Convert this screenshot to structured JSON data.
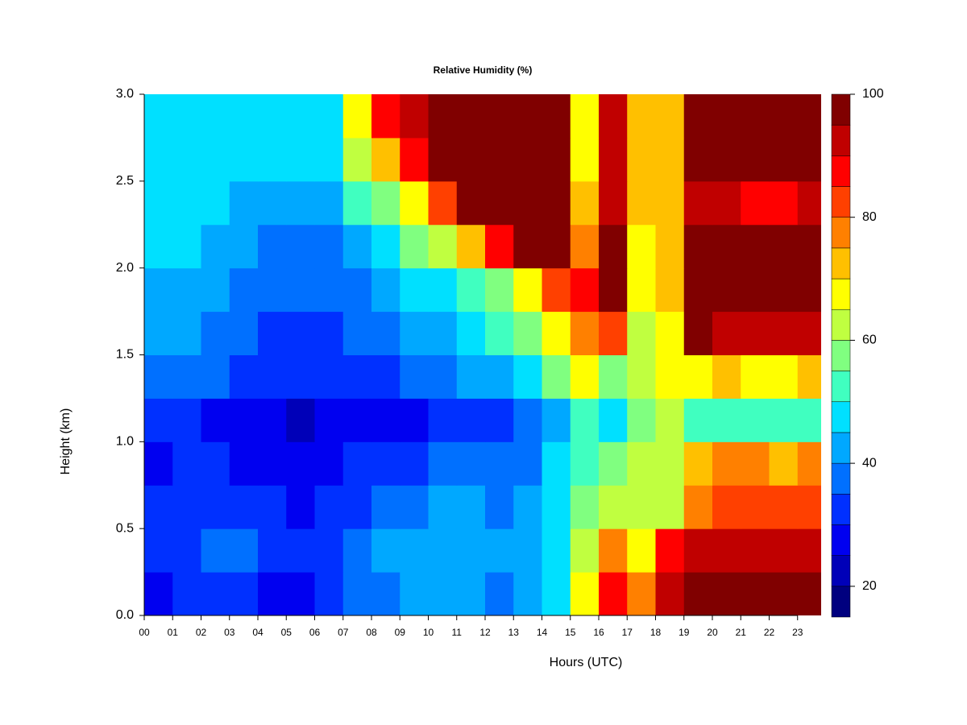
{
  "chart_data": {
    "type": "heatmap",
    "title": "Relative Humidity (%)",
    "x_label": "Hours (UTC)",
    "y_label": "Height (km)",
    "x": [
      0.5,
      1.5,
      2.5,
      3.5,
      4.5,
      5.5,
      6.5,
      7.5,
      8.5,
      9.5,
      10.5,
      11.5,
      12.5,
      13.5,
      14.5,
      15.5,
      16.5,
      17.5,
      18.5,
      19.5,
      20.5,
      21.5,
      22.5,
      23.5
    ],
    "y": [
      0.125,
      0.375,
      0.625,
      0.875,
      1.125,
      1.375,
      1.625,
      1.875,
      2.125,
      2.375,
      2.625,
      2.875
    ],
    "z": [
      [
        28,
        30,
        32,
        30,
        28,
        28,
        30,
        35,
        38,
        40,
        40,
        40,
        38,
        40,
        45,
        65,
        88,
        75,
        90,
        97,
        97,
        97,
        97,
        97
      ],
      [
        30,
        33,
        35,
        35,
        33,
        30,
        32,
        38,
        40,
        42,
        43,
        42,
        40,
        42,
        48,
        60,
        78,
        68,
        85,
        92,
        90,
        92,
        92,
        92
      ],
      [
        30,
        32,
        32,
        32,
        30,
        28,
        30,
        33,
        35,
        38,
        40,
        40,
        38,
        40,
        48,
        55,
        62,
        62,
        62,
        78,
        80,
        82,
        80,
        80
      ],
      [
        28,
        30,
        30,
        28,
        25,
        25,
        27,
        30,
        30,
        32,
        35,
        35,
        36,
        38,
        45,
        52,
        55,
        60,
        62,
        72,
        75,
        75,
        72,
        75
      ],
      [
        30,
        30,
        28,
        27,
        25,
        23,
        25,
        27,
        27,
        28,
        30,
        32,
        34,
        36,
        42,
        50,
        48,
        58,
        60,
        50,
        52,
        50,
        52,
        52
      ],
      [
        38,
        38,
        36,
        33,
        30,
        30,
        32,
        33,
        33,
        35,
        38,
        40,
        42,
        48,
        55,
        65,
        55,
        62,
        65,
        68,
        70,
        68,
        68,
        70
      ],
      [
        42,
        40,
        38,
        35,
        33,
        32,
        33,
        36,
        38,
        40,
        42,
        45,
        50,
        58,
        68,
        78,
        82,
        62,
        68,
        97,
        92,
        92,
        92,
        92
      ],
      [
        42,
        42,
        40,
        38,
        35,
        35,
        35,
        38,
        42,
        45,
        48,
        52,
        58,
        68,
        80,
        85,
        97,
        65,
        70,
        98,
        98,
        98,
        98,
        98
      ],
      [
        45,
        45,
        42,
        40,
        38,
        38,
        38,
        42,
        48,
        55,
        62,
        70,
        85,
        97,
        97,
        75,
        97,
        68,
        70,
        97,
        95,
        95,
        95,
        95
      ],
      [
        45,
        48,
        45,
        43,
        42,
        42,
        42,
        50,
        58,
        68,
        80,
        95,
        98,
        98,
        98,
        70,
        93,
        70,
        70,
        92,
        90,
        88,
        88,
        92
      ],
      [
        48,
        48,
        47,
        45,
        45,
        45,
        45,
        60,
        72,
        85,
        95,
        98,
        98,
        98,
        98,
        68,
        92,
        70,
        70,
        95,
        95,
        95,
        95,
        95
      ],
      [
        48,
        48,
        48,
        48,
        48,
        48,
        48,
        68,
        85,
        92,
        98,
        98,
        98,
        98,
        98,
        68,
        92,
        70,
        70,
        97,
        97,
        97,
        97,
        97
      ]
    ],
    "levels": [
      15,
      20,
      25,
      30,
      35,
      40,
      45,
      50,
      55,
      60,
      65,
      70,
      75,
      80,
      85,
      90,
      95,
      100
    ],
    "colors": [
      "#00007f",
      "#0000b8",
      "#0000f0",
      "#0030ff",
      "#0070ff",
      "#00a8ff",
      "#00e0ff",
      "#40ffc0",
      "#80ff80",
      "#c0ff40",
      "#ffff00",
      "#ffc000",
      "#ff8000",
      "#ff4000",
      "#ff0000",
      "#c00000",
      "#800000"
    ],
    "xlim": [
      0,
      23.83
    ],
    "ylim": [
      0,
      3
    ],
    "clim": [
      15,
      100
    ],
    "xticks": [
      {
        "value": 0,
        "label": "00"
      },
      {
        "value": 1,
        "label": "01"
      },
      {
        "value": 2,
        "label": "02"
      },
      {
        "value": 3,
        "label": "03"
      },
      {
        "value": 4,
        "label": "04"
      },
      {
        "value": 5,
        "label": "05"
      },
      {
        "value": 6,
        "label": "06"
      },
      {
        "value": 7,
        "label": "07"
      },
      {
        "value": 8,
        "label": "08"
      },
      {
        "value": 9,
        "label": "09"
      },
      10,
      11,
      12,
      13,
      14,
      15,
      16,
      17,
      18,
      19,
      20,
      21,
      22,
      23
    ],
    "yticks": [
      {
        "value": 0,
        "label": "0.0"
      },
      0.5,
      {
        "value": 1,
        "label": "1.0"
      },
      1.5,
      {
        "value": 2,
        "label": "2.0"
      },
      2.5,
      {
        "value": 3,
        "label": "3.0"
      }
    ],
    "cticks": [
      20,
      40,
      60,
      80,
      100
    ]
  }
}
